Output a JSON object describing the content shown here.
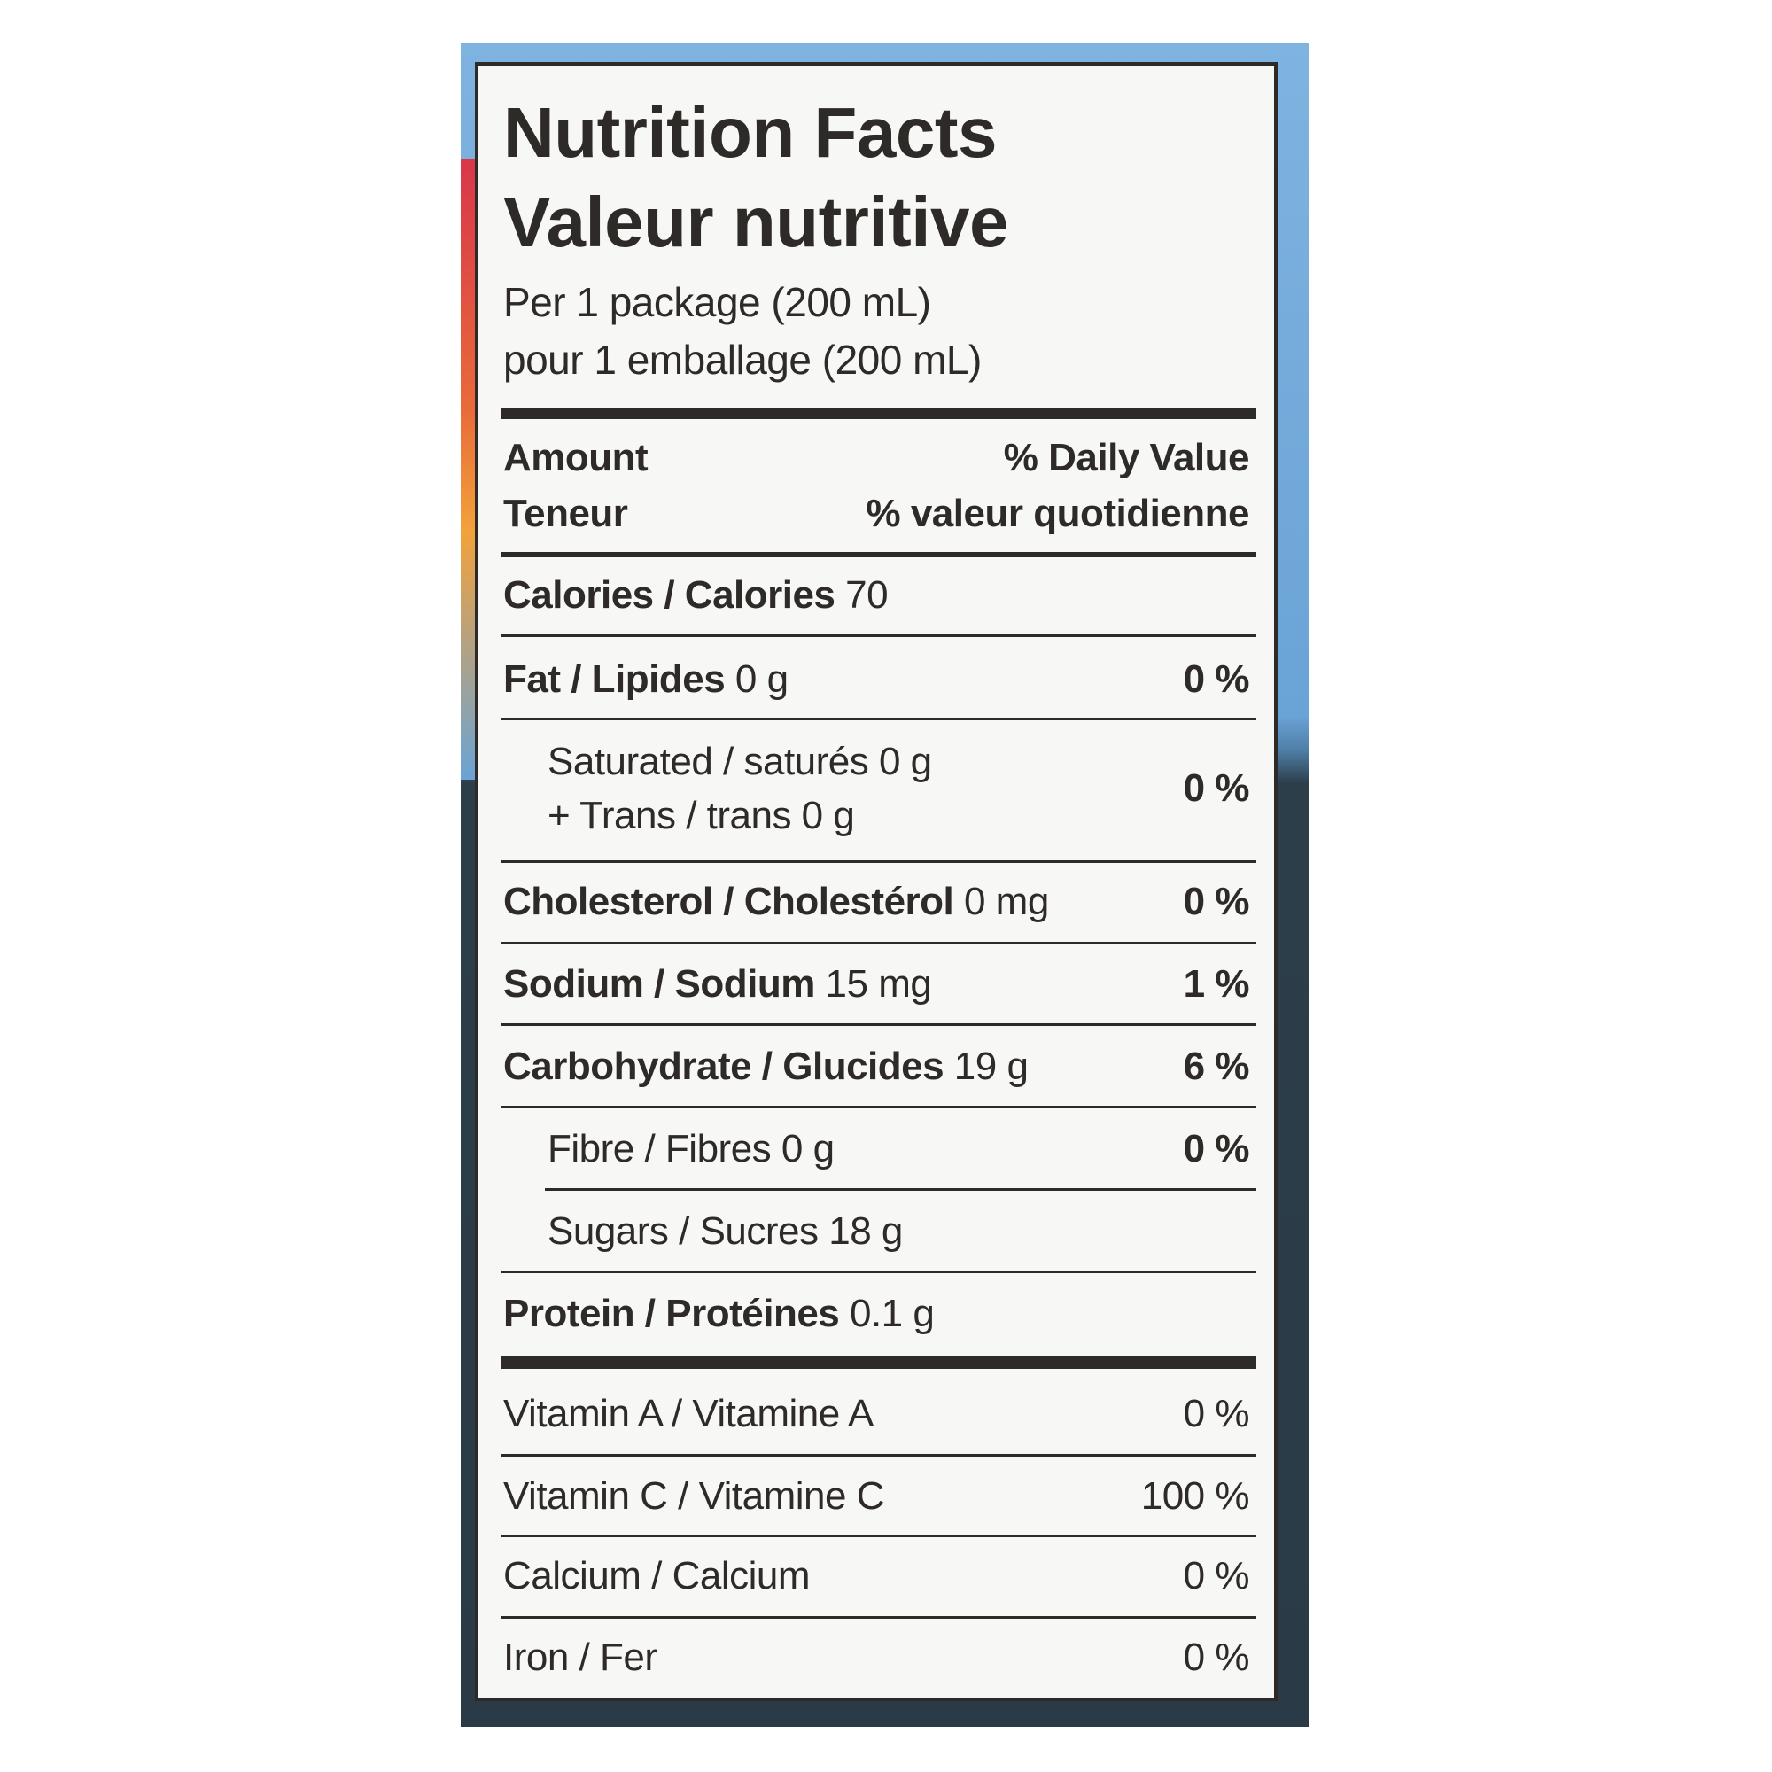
{
  "header": {
    "title": "Nutrition Facts",
    "title_fr": "Valeur nutritive",
    "serving": "Per 1 package (200 mL)",
    "serving_fr": "pour 1 emballage (200 mL)"
  },
  "columns": {
    "amount": "Amount",
    "amount_fr": "Teneur",
    "daily_value": "% Daily Value",
    "daily_value_fr": "% valeur quotidienne"
  },
  "nutrients": [
    {
      "name": "Calories / Calories",
      "amount": "70"
    },
    {
      "name": "Fat / Lipides",
      "amount": "0 g",
      "dv": "0 %"
    },
    {
      "name": "Saturated / saturés 0 g",
      "line2": "+ Trans / trans 0 g",
      "dv": "0 %"
    },
    {
      "name": "Cholesterol / Cholestérol",
      "amount": "0 mg",
      "dv": "0 %"
    },
    {
      "name": "Sodium / Sodium",
      "amount": "15 mg",
      "dv": "1 %"
    },
    {
      "name": "Carbohydrate / Glucides",
      "amount": "19 g",
      "dv": "6 %"
    },
    {
      "name": "Fibre / Fibres 0 g",
      "dv": "0 %"
    },
    {
      "name": "Sugars / Sucres 18 g"
    },
    {
      "name": "Protein / Protéines",
      "amount": "0.1 g"
    }
  ],
  "vitamins": [
    {
      "name": "Vitamin A / Vitamine A",
      "dv": "0 %"
    },
    {
      "name": "Vitamin C / Vitamine C",
      "dv": "100 %"
    },
    {
      "name": "Calcium / Calcium",
      "dv": "0 %"
    },
    {
      "name": "Iron / Fer",
      "dv": "0 %"
    }
  ]
}
